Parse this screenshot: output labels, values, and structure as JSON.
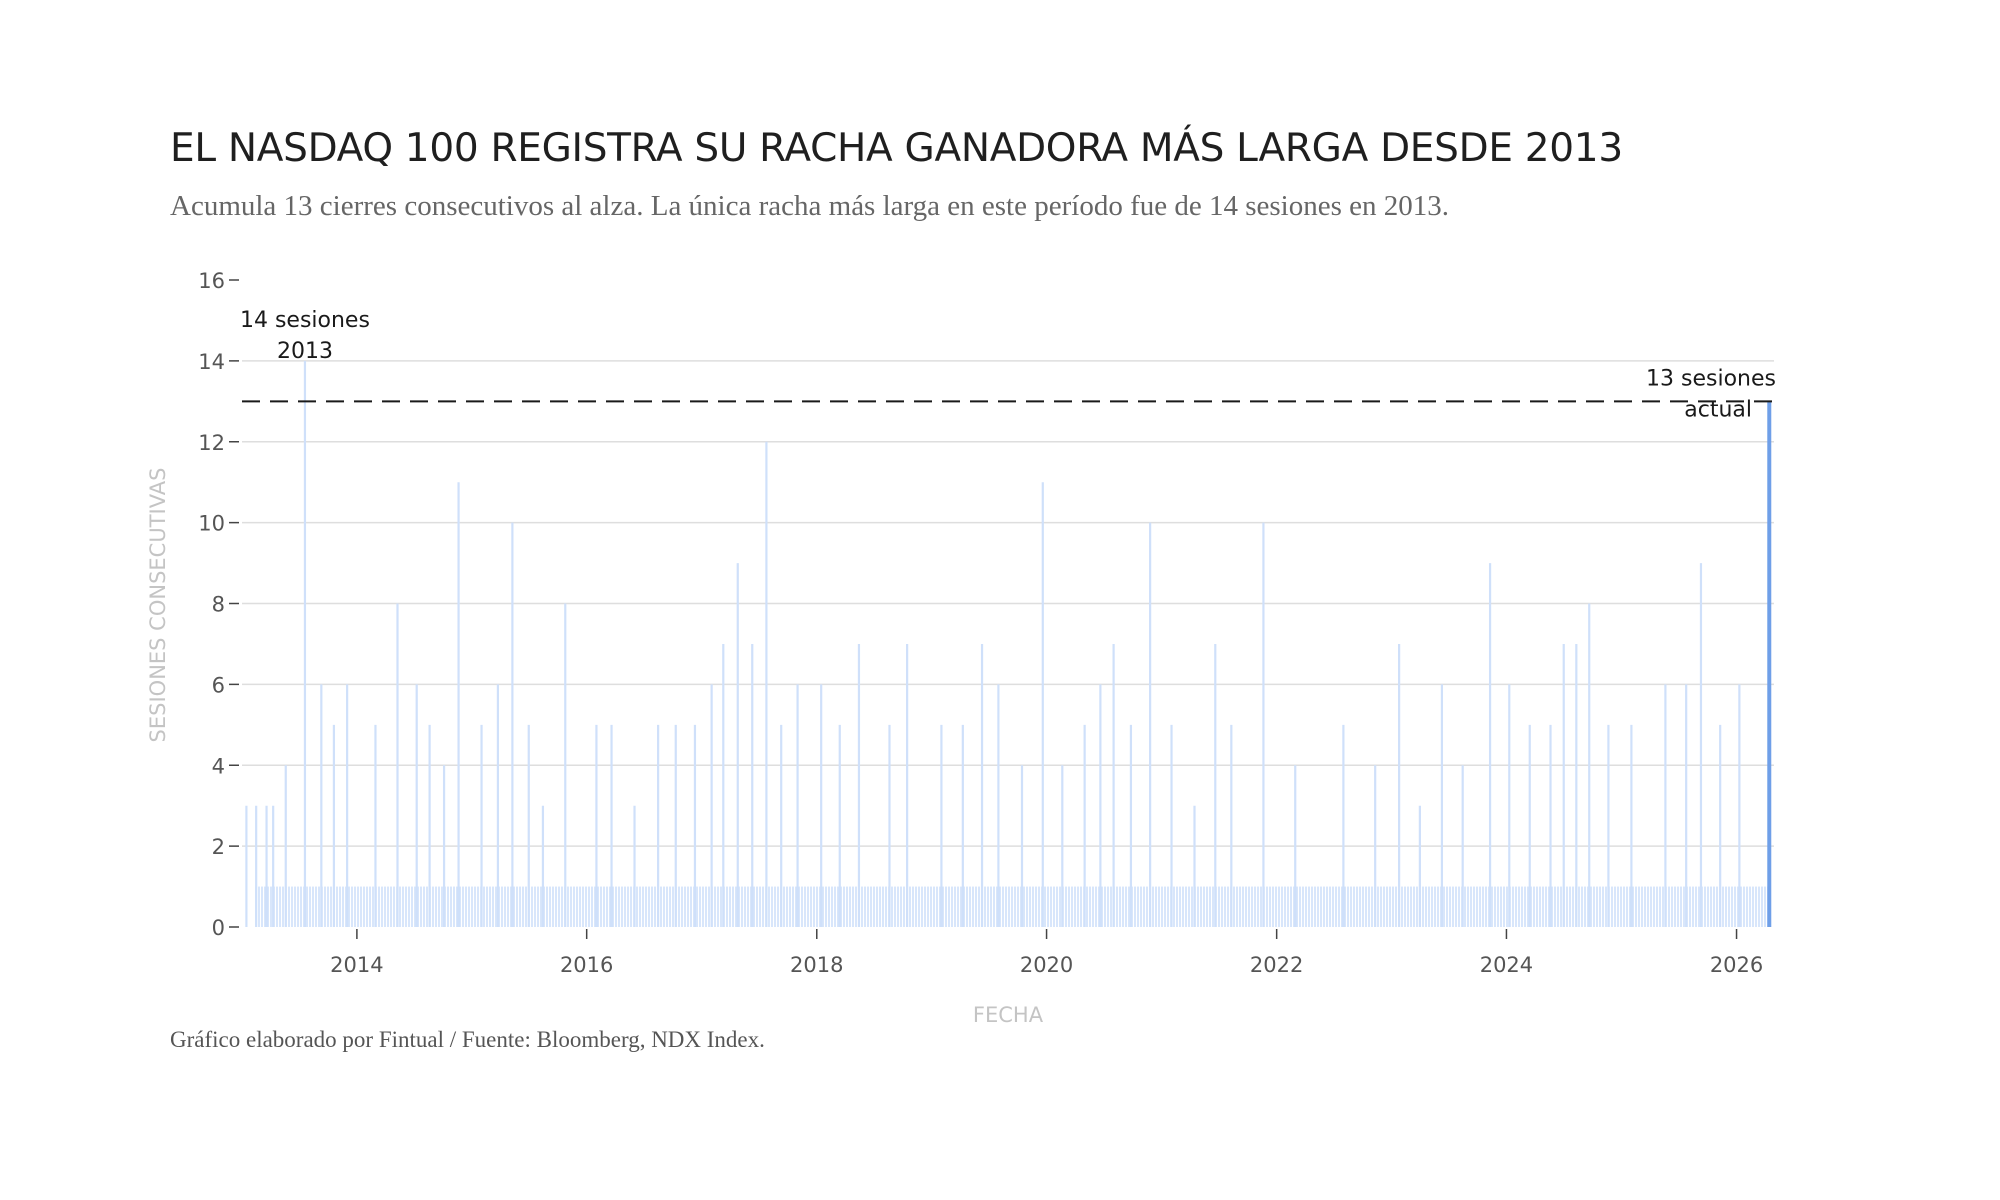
{
  "chart": {
    "title": "EL NASDAQ 100 REGISTRA SU RACHA GANADORA MÁS LARGA DESDE 2013",
    "subtitle": "Acumula 13 cierres consecutivos al alza. La única racha más larga en este período fue de 14 sesiones en 2013.",
    "source": "Gráfico elaborado por Fintual / Fuente: Bloomberg, NDX Index."
  },
  "colors": {
    "bar": "#cfe0fa",
    "bar_highlight": "#6f9fe8",
    "grid": "#dedede",
    "reference_line": "#1a1a1a"
  },
  "chart_data": {
    "type": "bar",
    "title": "EL NASDAQ 100 REGISTRA SU RACHA GANADORA MÁS LARGA DESDE 2013",
    "subtitle": "Acumula 13 cierres consecutivos al alza. La única racha más larga en este período fue de 14 sesiones en 2013.",
    "xlabel": "FECHA",
    "ylabel": "SESIONES CONSECUTIVAS",
    "xlim": [
      "2013-01-01",
      "2026-04-30"
    ],
    "ylim": [
      0,
      16
    ],
    "x_ticks": [
      "2014",
      "2016",
      "2018",
      "2020",
      "2022",
      "2024",
      "2026"
    ],
    "y_ticks": [
      "0",
      "2",
      "4",
      "6",
      "8",
      "10",
      "12",
      "14",
      "16"
    ],
    "grid": true,
    "reference_line": {
      "y": 13,
      "style": "dashed"
    },
    "annotations": [
      {
        "x": "2013-07-20",
        "y": 14,
        "lines": [
          "14 sesiones",
          "2013"
        ]
      },
      {
        "x": "2026-04-15",
        "y": 13,
        "lines": [
          "13 sesiones",
          "actual"
        ]
      }
    ],
    "baseline_value": 1,
    "series": [
      {
        "points": [
          {
            "x": "2013-01-15",
            "y": 3
          },
          {
            "x": "2013-02-15",
            "y": 3
          },
          {
            "x": "2013-03-20",
            "y": 3
          },
          {
            "x": "2013-04-10",
            "y": 3
          },
          {
            "x": "2013-05-20",
            "y": 4
          },
          {
            "x": "2013-07-20",
            "y": 14
          },
          {
            "x": "2013-09-10",
            "y": 6
          },
          {
            "x": "2013-10-20",
            "y": 5
          },
          {
            "x": "2013-12-01",
            "y": 6
          },
          {
            "x": "2014-03-01",
            "y": 5
          },
          {
            "x": "2014-05-10",
            "y": 8
          },
          {
            "x": "2014-07-10",
            "y": 6
          },
          {
            "x": "2014-08-20",
            "y": 5
          },
          {
            "x": "2014-10-05",
            "y": 4
          },
          {
            "x": "2014-11-20",
            "y": 11
          },
          {
            "x": "2015-02-01",
            "y": 5
          },
          {
            "x": "2015-03-25",
            "y": 6
          },
          {
            "x": "2015-05-10",
            "y": 10
          },
          {
            "x": "2015-07-01",
            "y": 5
          },
          {
            "x": "2015-08-15",
            "y": 3
          },
          {
            "x": "2015-10-25",
            "y": 8
          },
          {
            "x": "2016-02-01",
            "y": 5
          },
          {
            "x": "2016-03-20",
            "y": 5
          },
          {
            "x": "2016-06-01",
            "y": 3
          },
          {
            "x": "2016-08-15",
            "y": 5
          },
          {
            "x": "2016-10-10",
            "y": 5
          },
          {
            "x": "2016-12-10",
            "y": 5
          },
          {
            "x": "2017-02-01",
            "y": 6
          },
          {
            "x": "2017-03-10",
            "y": 7
          },
          {
            "x": "2017-04-25",
            "y": 9
          },
          {
            "x": "2017-06-10",
            "y": 7
          },
          {
            "x": "2017-07-25",
            "y": 12
          },
          {
            "x": "2017-09-10",
            "y": 5
          },
          {
            "x": "2017-11-01",
            "y": 6
          },
          {
            "x": "2018-01-15",
            "y": 6
          },
          {
            "x": "2018-03-15",
            "y": 5
          },
          {
            "x": "2018-05-15",
            "y": 7
          },
          {
            "x": "2018-08-20",
            "y": 5
          },
          {
            "x": "2018-10-15",
            "y": 7
          },
          {
            "x": "2019-02-01",
            "y": 5
          },
          {
            "x": "2019-04-10",
            "y": 5
          },
          {
            "x": "2019-06-10",
            "y": 7
          },
          {
            "x": "2019-08-01",
            "y": 6
          },
          {
            "x": "2019-10-15",
            "y": 4
          },
          {
            "x": "2019-12-20",
            "y": 11
          },
          {
            "x": "2020-02-20",
            "y": 4
          },
          {
            "x": "2020-05-01",
            "y": 5
          },
          {
            "x": "2020-06-20",
            "y": 6
          },
          {
            "x": "2020-08-01",
            "y": 7
          },
          {
            "x": "2020-09-25",
            "y": 5
          },
          {
            "x": "2020-11-25",
            "y": 10
          },
          {
            "x": "2021-02-01",
            "y": 5
          },
          {
            "x": "2021-04-15",
            "y": 3
          },
          {
            "x": "2021-06-20",
            "y": 7
          },
          {
            "x": "2021-08-10",
            "y": 5
          },
          {
            "x": "2021-11-20",
            "y": 10
          },
          {
            "x": "2022-03-01",
            "y": 4
          },
          {
            "x": "2022-08-01",
            "y": 5
          },
          {
            "x": "2022-11-10",
            "y": 4
          },
          {
            "x": "2023-01-25",
            "y": 7
          },
          {
            "x": "2023-04-01",
            "y": 3
          },
          {
            "x": "2023-06-10",
            "y": 6
          },
          {
            "x": "2023-08-15",
            "y": 4
          },
          {
            "x": "2023-11-10",
            "y": 9
          },
          {
            "x": "2024-01-10",
            "y": 6
          },
          {
            "x": "2024-03-15",
            "y": 5
          },
          {
            "x": "2024-05-20",
            "y": 5
          },
          {
            "x": "2024-07-01",
            "y": 7
          },
          {
            "x": "2024-08-10",
            "y": 7
          },
          {
            "x": "2024-09-20",
            "y": 8
          },
          {
            "x": "2024-11-20",
            "y": 5
          },
          {
            "x": "2025-02-01",
            "y": 5
          },
          {
            "x": "2025-05-20",
            "y": 6
          },
          {
            "x": "2025-07-25",
            "y": 6
          },
          {
            "x": "2025-09-10",
            "y": 9
          },
          {
            "x": "2025-11-10",
            "y": 5
          },
          {
            "x": "2026-01-10",
            "y": 6
          },
          {
            "x": "2026-04-15",
            "y": 13
          }
        ]
      }
    ]
  }
}
